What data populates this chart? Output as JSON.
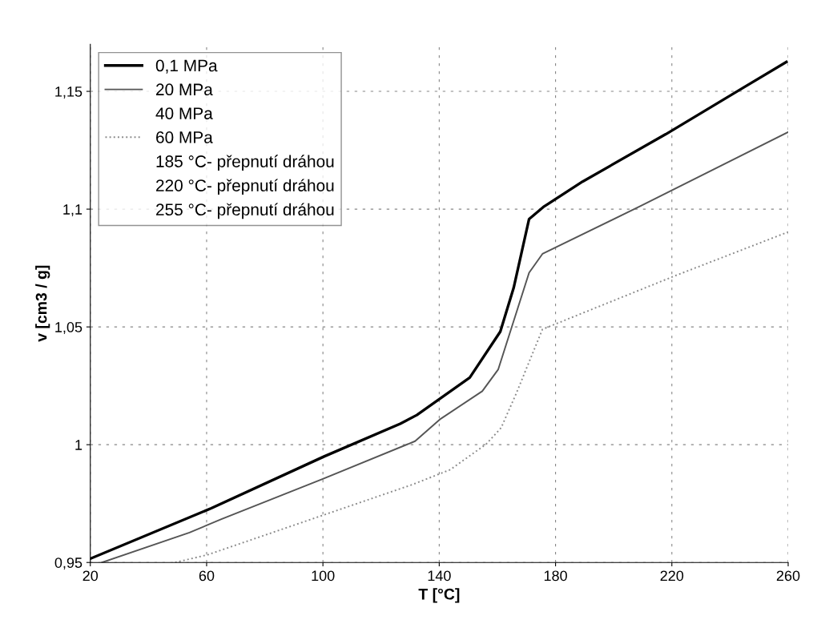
{
  "chart_data": {
    "type": "line",
    "xlabel": "T [°C]",
    "ylabel": "v [cm3 / g]",
    "xlim": [
      20,
      260
    ],
    "ylim": [
      0.95,
      1.17
    ],
    "xticks": [
      20,
      60,
      100,
      140,
      180,
      220,
      260
    ],
    "yticks": [
      {
        "value": 0.95,
        "label": "0,95"
      },
      {
        "value": 1,
        "label": "1"
      },
      {
        "value": 1.05,
        "label": "1,05"
      },
      {
        "value": 1.1,
        "label": "1,1"
      },
      {
        "value": 1.15,
        "label": "1,15"
      }
    ],
    "grid": true,
    "legend": "top left",
    "marker": "none",
    "series": [
      {
        "name": "0,1 MPa",
        "color": "#000000",
        "line_style": "solid",
        "x": [
          20,
          61.6,
          100.4,
          126.6,
          132.3,
          150.5,
          161,
          165.6,
          170.9,
          175.8,
          189.3,
          217.9,
          244.5,
          259.4
        ],
        "values": [
          0.9516,
          0.973,
          0.995,
          1.0089,
          1.0126,
          1.0285,
          1.048,
          1.0666,
          1.0958,
          1.1009,
          1.1117,
          1.1318,
          1.1515,
          1.1625
        ]
      },
      {
        "name": "20 MPa",
        "color": "#555555",
        "line_style": "solid",
        "x": [
          24,
          54.1,
          64.9,
          99.8,
          131.7,
          140.5,
          154.8,
          160.3,
          170.9,
          175.5,
          208.7,
          260
        ],
        "values": [
          0.95,
          0.9627,
          0.9683,
          0.9854,
          1.0015,
          1.011,
          1.0227,
          1.032,
          1.073,
          1.081,
          1.101,
          1.1327
        ]
      },
      {
        "name": "40 MPa"
      },
      {
        "name": "60 MPa",
        "color": "#8c8c8c",
        "line_style": "dotted",
        "x": [
          49.2,
          60.4,
          130.6,
          143.8,
          156.2,
          161.3,
          166.5,
          175.5,
          221.5,
          260
        ],
        "values": [
          0.95,
          0.9533,
          0.983,
          0.9894,
          1.0003,
          1.0072,
          1.0218,
          1.049,
          1.0719,
          1.0903
        ]
      },
      {
        "name": "185 °C- přepnutí dráhou"
      },
      {
        "name": "220 °C- přepnutí dráhou"
      },
      {
        "name": "255 °C- přepnutí dráhou"
      }
    ]
  }
}
